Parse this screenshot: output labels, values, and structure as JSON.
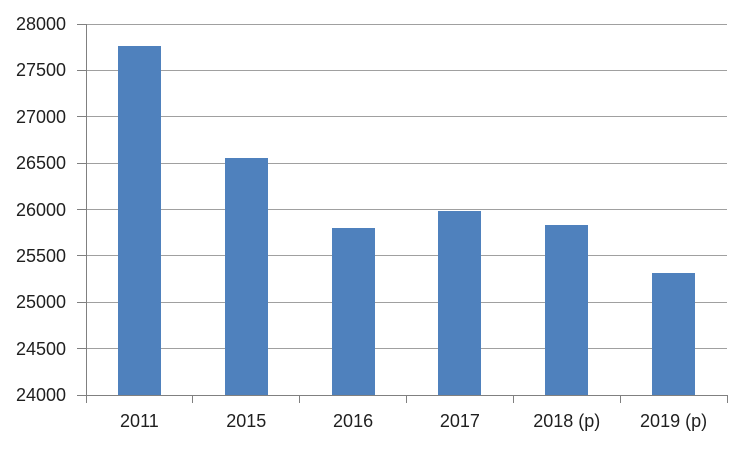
{
  "chart_data": {
    "type": "bar",
    "title": "",
    "xlabel": "",
    "ylabel": "",
    "categories": [
      "2011",
      "2015",
      "2016",
      "2017",
      "2018 (p)",
      "2019 (p)"
    ],
    "values": [
      27760,
      26555,
      25805,
      25980,
      25835,
      25315
    ],
    "ylim": [
      24000,
      28000
    ],
    "ytick_step": 500,
    "yticks": [
      24000,
      24500,
      25000,
      25500,
      26000,
      26500,
      27000,
      27500,
      28000
    ],
    "grid": true,
    "legend": false,
    "bar_color": "#4f81bd",
    "gridline_color": "#a0a0a0",
    "axis_color": "#808080",
    "text_color": "#1f1f1f",
    "background": "#ffffff"
  }
}
